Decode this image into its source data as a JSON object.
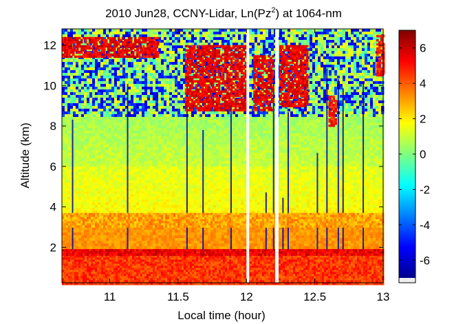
{
  "chart_data": {
    "type": "heatmap",
    "title_main": "2010 Jun28, CCNY-Lidar, Ln(Pz",
    "title_sup": "2",
    "title_tail": ") at 1064-nm",
    "xlabel": "Local time (hour)",
    "ylabel": "Altitude (km)",
    "xlim": [
      10.65,
      13.0
    ],
    "ylim": [
      0.25,
      12.8
    ],
    "x_ticks": [
      11,
      11.5,
      12,
      12.5,
      13
    ],
    "x_tick_labels": [
      "11",
      "11.5",
      "12",
      "12.5",
      "13"
    ],
    "y_ticks": [
      2,
      4,
      6,
      8,
      10,
      12
    ],
    "y_tick_labels": [
      "2",
      "4",
      "6",
      "8",
      "10",
      "12"
    ],
    "colorbar": {
      "range": [
        -7,
        7
      ],
      "ticks": [
        -6,
        -4,
        -2,
        0,
        2,
        4,
        6
      ],
      "tick_labels": [
        "-6",
        "-4",
        "-2",
        "0",
        "2",
        "4",
        "6"
      ],
      "colormap": "jet"
    },
    "data_gaps": [
      [
        12.0,
        12.02
      ],
      [
        12.21,
        12.235
      ]
    ],
    "features": [
      {
        "type": "boundary_layer",
        "x_range": [
          10.65,
          13.0
        ],
        "y_range": [
          0.25,
          1.8
        ],
        "value": 4.5
      },
      {
        "type": "boundary_layer_top",
        "x_range": [
          10.65,
          13.0
        ],
        "y_range": [
          1.6,
          1.9
        ],
        "value": 5.5
      },
      {
        "type": "aerosol_layer",
        "x_range": [
          10.65,
          13.0
        ],
        "y_range": [
          3.0,
          3.7
        ],
        "value": 3.0
      },
      {
        "type": "cirrus",
        "x_range": [
          10.65,
          11.35
        ],
        "y_range": [
          11.4,
          12.4
        ],
        "value": 5.5
      },
      {
        "type": "cirrus",
        "x_range": [
          11.55,
          12.0
        ],
        "y_range": [
          8.8,
          12.0
        ],
        "value": 5.5
      },
      {
        "type": "cirrus",
        "x_range": [
          12.05,
          12.2
        ],
        "y_range": [
          8.8,
          11.5
        ],
        "value": 5.5
      },
      {
        "type": "cirrus",
        "x_range": [
          12.24,
          12.45
        ],
        "y_range": [
          9.0,
          12.0
        ],
        "value": 5.5
      },
      {
        "type": "cirrus",
        "x_range": [
          12.6,
          12.65
        ],
        "y_range": [
          8.0,
          9.5
        ],
        "value": 5.0
      },
      {
        "type": "cirrus",
        "x_range": [
          12.95,
          13.0
        ],
        "y_range": [
          10.5,
          12.5
        ],
        "value": 5.0
      }
    ]
  }
}
